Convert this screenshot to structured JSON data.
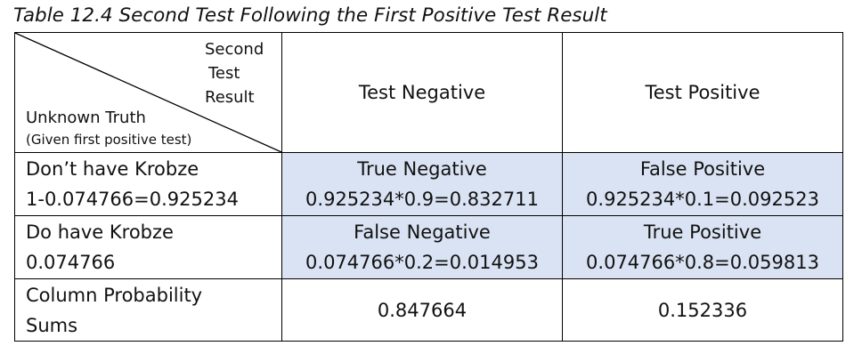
{
  "caption": "Table 12.4 Second Test Following the First Positive Test Result",
  "corner": {
    "top_lines": [
      "Second",
      "Test",
      "Result"
    ],
    "bottom_main": "Unknown Truth",
    "bottom_sub": "(Given first positive test)"
  },
  "columns": [
    "Test Negative",
    "Test Positive"
  ],
  "rows": [
    {
      "label": "Don’t have Krobze",
      "value": "1-0.074766=0.925234",
      "cells": [
        {
          "name": "True Negative",
          "calc": "0.925234*0.9=0.832711"
        },
        {
          "name": "False Positive",
          "calc": "0.925234*0.1=0.092523"
        }
      ]
    },
    {
      "label": "Do have Krobze",
      "value": "0.074766",
      "cells": [
        {
          "name": "False Negative",
          "calc": "0.074766*0.2=0.014953"
        },
        {
          "name": "True Positive",
          "calc": "0.074766*0.8=0.059813"
        }
      ]
    }
  ],
  "sums": {
    "label_line1": "Column Probability",
    "label_line2": "Sums",
    "values": [
      "0.847664",
      "0.152336"
    ]
  },
  "colors": {
    "shaded_cell": "#dae3f3",
    "border": "#000000"
  }
}
